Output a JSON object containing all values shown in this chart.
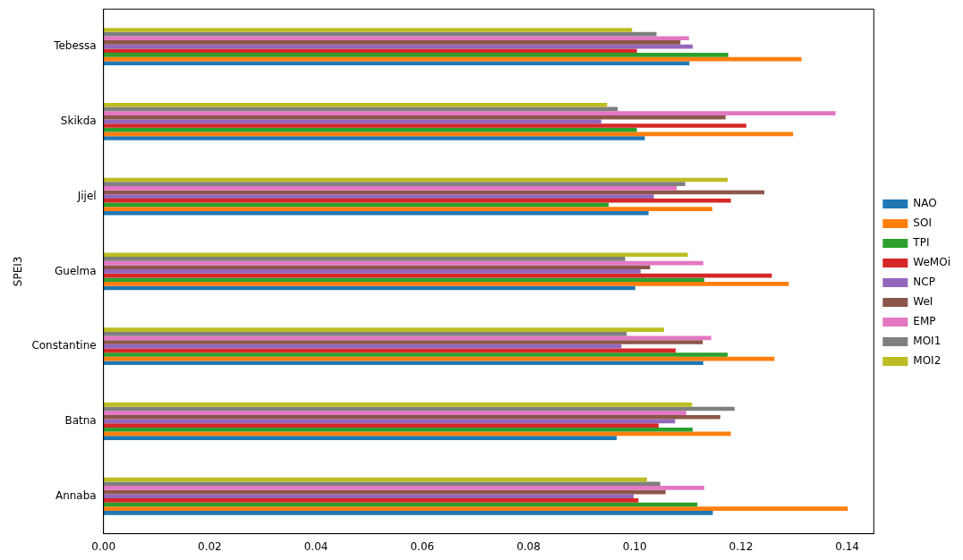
{
  "chart_data": {
    "type": "bar",
    "orientation": "horizontal",
    "ylabel": "SPEI3",
    "categories": [
      "Tebessa",
      "Skikda",
      "Jijel",
      "Guelma",
      "Constantine",
      "Batna",
      "Annaba"
    ],
    "series": [
      {
        "name": "NAO",
        "color": "#1f77b4",
        "values": [
          0.1103,
          0.1019,
          0.1026,
          0.1001,
          0.1129,
          0.0966,
          0.1147
        ]
      },
      {
        "name": "SOI",
        "color": "#ff7f0e",
        "values": [
          0.1314,
          0.1298,
          0.1146,
          0.129,
          0.1263,
          0.1181,
          0.1401
        ]
      },
      {
        "name": "TPI",
        "color": "#2ca02c",
        "values": [
          0.1176,
          0.1004,
          0.0951,
          0.1131,
          0.1175,
          0.1109,
          0.1118
        ]
      },
      {
        "name": "WeMOi",
        "color": "#d62728",
        "values": [
          0.1004,
          0.121,
          0.1181,
          0.1258,
          0.1077,
          0.1045,
          0.1007
        ]
      },
      {
        "name": "NCP",
        "color": "#9467bd",
        "values": [
          0.1109,
          0.0937,
          0.1036,
          0.1011,
          0.0975,
          0.1076,
          0.0998
        ]
      },
      {
        "name": "WeI",
        "color": "#8c564b",
        "values": [
          0.1086,
          0.1171,
          0.1244,
          0.1029,
          0.1128,
          0.1161,
          0.1058
        ]
      },
      {
        "name": "EMP",
        "color": "#e377c2",
        "values": [
          0.1102,
          0.1378,
          0.1079,
          0.1129,
          0.1144,
          0.1097,
          0.1131
        ]
      },
      {
        "name": "MOI1",
        "color": "#7f7f7f",
        "values": [
          0.1041,
          0.0968,
          0.1095,
          0.0982,
          0.0985,
          0.1188,
          0.1048
        ]
      },
      {
        "name": "MOI2",
        "color": "#bcbd22",
        "values": [
          0.0995,
          0.0948,
          0.1175,
          0.11,
          0.1055,
          0.1108,
          0.1023
        ]
      }
    ],
    "xlim": [
      0,
      0.145
    ],
    "xticks": [
      {
        "value": 0,
        "label": "0.00"
      },
      {
        "value": 0.02,
        "label": "0.02"
      },
      {
        "value": 0.04,
        "label": "0.04"
      },
      {
        "value": 0.06,
        "label": "0.06"
      },
      {
        "value": 0.08,
        "label": "0.08"
      },
      {
        "value": 0.1,
        "label": "0.10"
      },
      {
        "value": 0.12,
        "label": "0.12"
      },
      {
        "value": 0.14,
        "label": "0.14"
      }
    ],
    "grid": false,
    "legend": "right"
  }
}
